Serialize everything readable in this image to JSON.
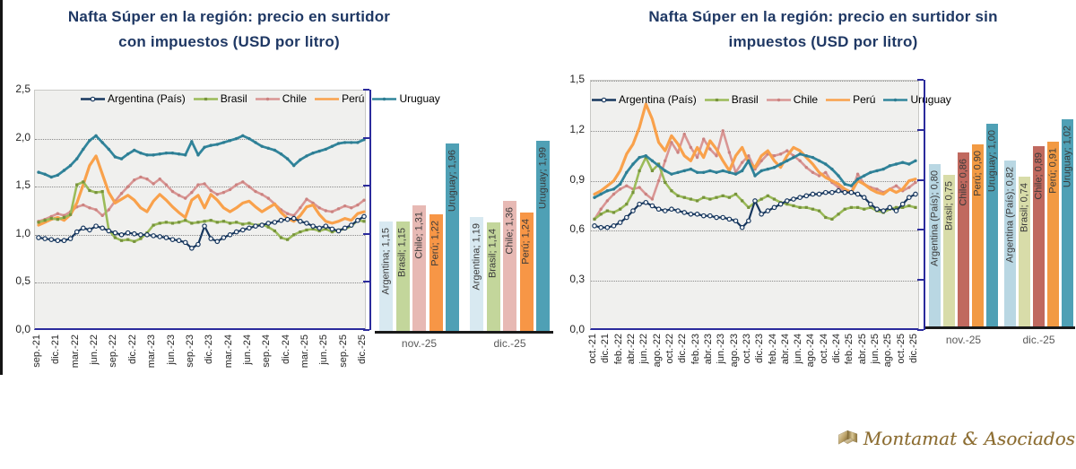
{
  "page": {
    "background": "#FFFFFF",
    "edge_bar_color": "#141414"
  },
  "logo": {
    "name": "Montamat & Asociados",
    "text_color": "#8B6B2E",
    "icon": "folded-ribbon-book"
  },
  "chart_data": [
    {
      "id": "con-impuestos",
      "type": "line+bar",
      "title_line1": "Nafta Súper en la región: precio en surtidor",
      "title_line2": "con impuestos (USD por litro)",
      "title_color": "#1F3864",
      "ylim": [
        0,
        2.5
      ],
      "y_ticks": [
        "0,0",
        "0,5",
        "1,0",
        "1,5",
        "2,0",
        "2,5"
      ],
      "axis_color": "#2B2B9C",
      "plot_background": "#F0F0EE",
      "x_labels": [
        "sep.-21",
        "dic.-21",
        "mar.-22",
        "jun.-22",
        "sep.-22",
        "dic.-22",
        "mar.-23",
        "jun.-23",
        "sep.-23",
        "dic.-23",
        "mar.-24",
        "jun.-24",
        "sep.-24",
        "dic.-24",
        "mar.-25",
        "jun.-25",
        "sep.-25",
        "dic.-25"
      ],
      "series": [
        {
          "name": "Argentina (País)",
          "color": "#17375E",
          "marker": "circle-open",
          "marker_color": "#FFFFFF",
          "values": [
            0.97,
            0.96,
            0.95,
            0.94,
            0.94,
            0.96,
            1.03,
            1.07,
            1.05,
            1.09,
            1.07,
            1.04,
            1.02,
            1.0,
            1.02,
            1.01,
            1.0,
            1.0,
            0.99,
            0.98,
            0.97,
            0.95,
            0.94,
            0.92,
            0.86,
            0.9,
            1.09,
            0.96,
            0.93,
            0.97,
            1.0,
            1.03,
            1.05,
            1.07,
            1.09,
            1.1,
            1.12,
            1.13,
            1.15,
            1.16,
            1.17,
            1.14,
            1.12,
            1.09,
            1.07,
            1.09,
            1.06,
            1.04,
            1.07,
            1.1,
            1.15,
            1.19
          ]
        },
        {
          "name": "Brasil",
          "color": "#9BBB59",
          "marker": "square",
          "marker_color": "#77933C",
          "values": [
            1.13,
            1.15,
            1.17,
            1.16,
            1.18,
            1.21,
            1.52,
            1.55,
            1.46,
            1.44,
            1.45,
            1.05,
            0.97,
            0.94,
            0.95,
            0.93,
            0.96,
            1.02,
            1.1,
            1.12,
            1.13,
            1.12,
            1.13,
            1.15,
            1.12,
            1.13,
            1.14,
            1.15,
            1.13,
            1.14,
            1.12,
            1.13,
            1.11,
            1.12,
            1.1,
            1.11,
            1.08,
            1.04,
            0.97,
            0.95,
            1.0,
            1.03,
            1.05,
            1.06,
            1.04,
            1.06,
            1.03,
            1.05,
            1.06,
            1.09,
            1.15,
            1.14
          ]
        },
        {
          "name": "Chile",
          "color": "#D99694",
          "marker": "dot",
          "marker_color": "#CB8280",
          "values": [
            1.14,
            1.16,
            1.19,
            1.22,
            1.2,
            1.24,
            1.29,
            1.31,
            1.28,
            1.26,
            1.2,
            1.26,
            1.35,
            1.43,
            1.5,
            1.57,
            1.6,
            1.58,
            1.53,
            1.58,
            1.52,
            1.45,
            1.41,
            1.38,
            1.44,
            1.52,
            1.53,
            1.46,
            1.42,
            1.44,
            1.47,
            1.52,
            1.55,
            1.5,
            1.45,
            1.42,
            1.38,
            1.32,
            1.26,
            1.22,
            1.2,
            1.28,
            1.37,
            1.33,
            1.28,
            1.25,
            1.24,
            1.27,
            1.3,
            1.28,
            1.31,
            1.36
          ]
        },
        {
          "name": "Perú",
          "color": "#F9A14B",
          "marker": "none",
          "marker_color": "#F9A14B",
          "values": [
            1.1,
            1.13,
            1.16,
            1.18,
            1.15,
            1.21,
            1.33,
            1.52,
            1.72,
            1.82,
            1.63,
            1.44,
            1.33,
            1.37,
            1.41,
            1.36,
            1.28,
            1.24,
            1.35,
            1.42,
            1.36,
            1.29,
            1.23,
            1.18,
            1.36,
            1.41,
            1.28,
            1.42,
            1.36,
            1.28,
            1.24,
            1.28,
            1.33,
            1.35,
            1.29,
            1.24,
            1.28,
            1.32,
            1.23,
            1.17,
            1.14,
            1.2,
            1.29,
            1.31,
            1.21,
            1.14,
            1.12,
            1.14,
            1.17,
            1.15,
            1.22,
            1.24
          ]
        },
        {
          "name": "Uruguay",
          "color": "#31859C",
          "marker": "dot",
          "marker_color": "#2E7D92",
          "values": [
            1.65,
            1.63,
            1.6,
            1.62,
            1.67,
            1.72,
            1.79,
            1.89,
            1.98,
            2.03,
            1.96,
            1.89,
            1.81,
            1.79,
            1.84,
            1.88,
            1.85,
            1.83,
            1.83,
            1.84,
            1.85,
            1.85,
            1.84,
            1.83,
            1.97,
            1.83,
            1.91,
            1.93,
            1.94,
            1.96,
            1.98,
            2.0,
            2.03,
            2.0,
            1.96,
            1.92,
            1.9,
            1.88,
            1.84,
            1.79,
            1.72,
            1.78,
            1.82,
            1.85,
            1.87,
            1.89,
            1.92,
            1.95,
            1.96,
            1.96,
            1.96,
            1.99
          ]
        }
      ],
      "bar_groups": [
        {
          "label": "nov.-25",
          "bars": [
            {
              "series": "Argentina",
              "label": "Argentina;  1,15",
              "value": 1.15,
              "color": "#D8E9F1"
            },
            {
              "series": "Brasil",
              "label": "Brasil;  1,15",
              "value": 1.15,
              "color": "#C3D69B"
            },
            {
              "series": "Chile",
              "label": "Chile;  1,31",
              "value": 1.31,
              "color": "#E7B9B4"
            },
            {
              "series": "Perú",
              "label": "Perú;  1,22",
              "value": 1.22,
              "color": "#F79646"
            },
            {
              "series": "Uruguay",
              "label": "Uruguay;  1,96",
              "value": 1.96,
              "color": "#4FA0B5"
            }
          ]
        },
        {
          "label": "dic.-25",
          "bars": [
            {
              "series": "Argentina",
              "label": "Argentina;  1,19",
              "value": 1.19,
              "color": "#D8E9F1"
            },
            {
              "series": "Brasil",
              "label": "Brasil;  1,14",
              "value": 1.14,
              "color": "#C3D69B"
            },
            {
              "series": "Chile",
              "label": "Chile;  1,36",
              "value": 1.36,
              "color": "#E7B9B4"
            },
            {
              "series": "Perú",
              "label": "Perú;  1,24",
              "value": 1.24,
              "color": "#F79646"
            },
            {
              "series": "Uruguay",
              "label": "Uruguay;  1,99",
              "value": 1.99,
              "color": "#4FA0B5"
            }
          ]
        }
      ]
    },
    {
      "id": "sin-impuestos",
      "type": "line+bar",
      "title_line1": "Nafta Súper en la región: precio en surtidor sin",
      "title_line2": "impuestos (USD por litro)",
      "title_color": "#1F3864",
      "ylim": [
        0,
        1.5
      ],
      "y_ticks": [
        "0,0",
        "0,3",
        "0,6",
        "0,9",
        "1,2",
        "1,5"
      ],
      "axis_color": "#2B2B9C",
      "plot_background": "#F0F0EE",
      "x_labels": [
        "oct.-21",
        "dic.-21",
        "feb.-22",
        "abr.-22",
        "jun.-22",
        "ago.-22",
        "oct.-22",
        "dic.-22",
        "feb.-23",
        "abr.-23",
        "jun.-23",
        "ago.-23",
        "oct.-23",
        "dic.-23",
        "feb.-24",
        "abr.-24",
        "jun.-24",
        "ago.-24",
        "oct.-24",
        "dic.-24",
        "feb.-25",
        "abr.-25",
        "jun.-25",
        "ago.-25",
        "oct.-25",
        "dic.-25"
      ],
      "series": [
        {
          "name": "Argentina (País)",
          "color": "#17375E",
          "marker": "circle-open",
          "marker_color": "#FFFFFF",
          "values": [
            0.63,
            0.62,
            0.62,
            0.63,
            0.65,
            0.68,
            0.72,
            0.76,
            0.77,
            0.75,
            0.73,
            0.72,
            0.73,
            0.72,
            0.71,
            0.7,
            0.7,
            0.69,
            0.69,
            0.68,
            0.68,
            0.67,
            0.66,
            0.62,
            0.66,
            0.78,
            0.7,
            0.72,
            0.74,
            0.76,
            0.78,
            0.79,
            0.8,
            0.81,
            0.82,
            0.82,
            0.83,
            0.83,
            0.84,
            0.83,
            0.83,
            0.82,
            0.8,
            0.76,
            0.73,
            0.72,
            0.74,
            0.72,
            0.76,
            0.8,
            0.82
          ]
        },
        {
          "name": "Brasil",
          "color": "#9BBB59",
          "marker": "square",
          "marker_color": "#77933C",
          "values": [
            0.67,
            0.7,
            0.72,
            0.71,
            0.73,
            0.76,
            0.83,
            0.96,
            1.04,
            0.96,
            1.0,
            0.89,
            0.84,
            0.81,
            0.8,
            0.79,
            0.78,
            0.8,
            0.79,
            0.8,
            0.81,
            0.8,
            0.82,
            0.78,
            0.74,
            0.77,
            0.79,
            0.81,
            0.79,
            0.77,
            0.76,
            0.75,
            0.74,
            0.74,
            0.73,
            0.72,
            0.68,
            0.67,
            0.7,
            0.73,
            0.74,
            0.74,
            0.73,
            0.74,
            0.72,
            0.71,
            0.73,
            0.74,
            0.74,
            0.75,
            0.74
          ]
        },
        {
          "name": "Chile",
          "color": "#D99694",
          "marker": "dot",
          "marker_color": "#CB8280",
          "values": [
            0.67,
            0.73,
            0.78,
            0.82,
            0.85,
            0.87,
            0.85,
            0.86,
            0.82,
            0.79,
            0.9,
            1.02,
            1.13,
            1.07,
            1.18,
            1.1,
            1.04,
            1.15,
            1.09,
            1.05,
            1.2,
            1.07,
            0.95,
            1.01,
            1.05,
            0.97,
            1.02,
            1.06,
            1.05,
            1.06,
            1.08,
            1.05,
            1.02,
            0.98,
            0.95,
            0.93,
            0.95,
            0.89,
            0.86,
            0.84,
            0.83,
            0.94,
            0.88,
            0.86,
            0.85,
            0.83,
            0.85,
            0.87,
            0.84,
            0.86,
            0.89
          ]
        },
        {
          "name": "Perú",
          "color": "#F9A14B",
          "marker": "none",
          "marker_color": "#F9A14B",
          "values": [
            0.82,
            0.84,
            0.87,
            0.9,
            0.96,
            1.06,
            1.12,
            1.22,
            1.36,
            1.27,
            1.13,
            1.08,
            1.17,
            1.12,
            1.05,
            1.02,
            1.1,
            1.04,
            1.14,
            1.09,
            1.02,
            0.96,
            1.05,
            1.1,
            1.01,
            0.98,
            1.05,
            1.08,
            1.02,
            0.98,
            1.05,
            1.1,
            1.08,
            1.04,
            1.0,
            0.95,
            0.92,
            0.9,
            0.88,
            0.85,
            0.83,
            0.9,
            0.88,
            0.85,
            0.83,
            0.82,
            0.85,
            0.83,
            0.85,
            0.9,
            0.91
          ]
        },
        {
          "name": "Uruguay",
          "color": "#31859C",
          "marker": "dot",
          "marker_color": "#2E7D92",
          "values": [
            0.8,
            0.82,
            0.84,
            0.85,
            0.88,
            0.95,
            1.0,
            1.04,
            1.05,
            1.02,
            0.99,
            0.96,
            0.94,
            0.95,
            0.96,
            0.97,
            0.95,
            0.95,
            0.96,
            0.95,
            0.96,
            0.95,
            0.94,
            0.96,
            1.02,
            0.93,
            0.96,
            0.97,
            0.98,
            1.0,
            1.02,
            1.04,
            1.06,
            1.05,
            1.04,
            1.02,
            1.0,
            0.97,
            0.93,
            0.88,
            0.87,
            0.91,
            0.93,
            0.95,
            0.96,
            0.97,
            0.99,
            1.0,
            1.01,
            1.0,
            1.02
          ]
        }
      ],
      "bar_groups": [
        {
          "label": "nov.-25",
          "bars": [
            {
              "series": "Argentina",
              "label": "Argentina (País); 0,80",
              "value": 0.8,
              "color": "#B9D7E3"
            },
            {
              "series": "Brasil",
              "label": "Brasil; 0,75",
              "value": 0.75,
              "color": "#D8DCA9"
            },
            {
              "series": "Chile",
              "label": "Chile; 0,86",
              "value": 0.86,
              "color": "#C0695F"
            },
            {
              "series": "Perú",
              "label": "Perú; 0,90",
              "value": 0.9,
              "color": "#F29A43"
            },
            {
              "series": "Uruguay",
              "label": "Uruguay; 1,00",
              "value": 1.0,
              "color": "#4FA0B5"
            }
          ]
        },
        {
          "label": "dic.-25",
          "bars": [
            {
              "series": "Argentina",
              "label": "Argentina (País); 0,82",
              "value": 0.82,
              "color": "#B9D7E3"
            },
            {
              "series": "Brasil",
              "label": "Brasil; 0,74",
              "value": 0.74,
              "color": "#D8DCA9"
            },
            {
              "series": "Chile",
              "label": "Chile; 0,89",
              "value": 0.89,
              "color": "#C0695F"
            },
            {
              "series": "Perú",
              "label": "Perú; 0,91",
              "value": 0.91,
              "color": "#F29A43"
            },
            {
              "series": "Uruguay",
              "label": "Uruguay; 1,02",
              "value": 1.02,
              "color": "#4FA0B5"
            }
          ]
        }
      ]
    }
  ]
}
